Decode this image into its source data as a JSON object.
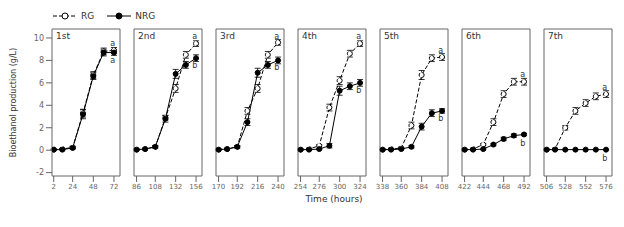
{
  "chart_data": {
    "type": "line",
    "xlabel": "Time (hours)",
    "ylabel": "Bioethanol production (g/L)",
    "legend": "upper left",
    "ylim": [
      -2.3,
      10.8
    ],
    "yticks": [
      -2,
      0,
      2,
      4,
      6,
      8,
      10
    ],
    "panels": [
      {
        "title": "1st",
        "x": [
          2,
          12,
          24,
          36,
          48,
          60,
          72
        ],
        "xlim": [
          0,
          79
        ],
        "xticks": [
          2,
          24,
          48,
          72
        ],
        "series": [
          {
            "name": "RG",
            "color": "black",
            "marker": "open_circle",
            "line_style": "dashed",
            "values": [
              0.05,
              0.1,
              0.25,
              3.3,
              6.7,
              8.8,
              8.9
            ],
            "errors": [
              0.05,
              0.05,
              0.1,
              0.35,
              0.3,
              0.3,
              0.25
            ]
          },
          {
            "name": "NRG",
            "color": "black",
            "marker": "circle",
            "line_style": "solid",
            "values": [
              0.05,
              0.05,
              0.2,
              3.2,
              6.6,
              8.7,
              8.7
            ],
            "errors": [
              0.05,
              0.05,
              0.1,
              0.4,
              0.3,
              0.3,
              0.25
            ]
          }
        ],
        "annotations": [
          {
            "text": "a",
            "x": 73.47,
            "y": 9.2
          },
          {
            "text": "a",
            "x": 73.47,
            "y": 8.4
          }
        ]
      },
      {
        "title": "2nd",
        "x": [
          86,
          96,
          108,
          120,
          132,
          144,
          156
        ],
        "xlim": [
          83,
          163
        ],
        "xticks": [
          86,
          108,
          132,
          156
        ],
        "series": [
          {
            "name": "RG",
            "color": "black",
            "marker": "open_circle",
            "line_style": "dashed",
            "values": [
              0.05,
              0.1,
              0.3,
              2.9,
              5.5,
              8.5,
              9.5
            ],
            "errors": [
              0.05,
              0.05,
              0.1,
              0.2,
              0.35,
              0.3,
              0.25
            ]
          },
          {
            "name": "NRG",
            "color": "black",
            "marker": "circle",
            "line_style": "solid",
            "values": [
              0.05,
              0.1,
              0.3,
              2.8,
              6.8,
              7.6,
              8.2
            ],
            "errors": [
              0.05,
              0.05,
              0.1,
              0.3,
              0.4,
              0.3,
              0.3
            ]
          }
        ],
        "annotations": [
          {
            "text": "a",
            "x": 157.4,
            "y": 9.8
          },
          {
            "text": "b",
            "x": 157.4,
            "y": 7.9
          }
        ]
      },
      {
        "title": "3rd",
        "x": [
          170,
          180,
          192,
          204,
          216,
          228,
          240
        ],
        "xlim": [
          167,
          247
        ],
        "xticks": [
          170,
          192,
          216,
          240
        ],
        "series": [
          {
            "name": "RG",
            "color": "black",
            "marker": "open_circle",
            "line_style": "dashed",
            "values": [
              0.05,
              0.1,
              0.3,
              3.5,
              5.5,
              8.5,
              9.6
            ],
            "errors": [
              0.05,
              0.05,
              0.1,
              0.3,
              0.35,
              0.3,
              0.25
            ]
          },
          {
            "name": "NRG",
            "color": "black",
            "marker": "circle",
            "line_style": "solid",
            "values": [
              0.05,
              0.1,
              0.3,
              2.5,
              6.9,
              7.6,
              8.0
            ],
            "errors": [
              0.05,
              0.05,
              0.1,
              0.3,
              0.4,
              0.3,
              0.3
            ]
          }
        ],
        "annotations": [
          {
            "text": "a",
            "x": 241.4,
            "y": 9.8
          },
          {
            "text": "b",
            "x": 241.4,
            "y": 7.7
          }
        ]
      },
      {
        "title": "4th",
        "x": [
          254,
          264,
          276,
          288,
          300,
          312,
          324
        ],
        "xlim": [
          251,
          331
        ],
        "xticks": [
          254,
          276,
          300,
          324
        ],
        "series": [
          {
            "name": "RG",
            "color": "black",
            "marker": "open_circle",
            "line_style": "dashed",
            "values": [
              0.05,
              0.1,
              0.4,
              3.8,
              6.2,
              8.6,
              9.5
            ],
            "errors": [
              0.05,
              0.05,
              0.1,
              0.3,
              0.35,
              0.3,
              0.25
            ]
          },
          {
            "name": "NRG",
            "color": "black",
            "marker": "circle",
            "line_style": "solid",
            "values": [
              0.05,
              0.05,
              0.1,
              0.4,
              5.3,
              5.7,
              6.0
            ],
            "errors": [
              0.05,
              0.05,
              0.05,
              0.2,
              0.4,
              0.3,
              0.3
            ]
          }
        ],
        "annotations": [
          {
            "text": "a",
            "x": 325.4,
            "y": 9.8
          },
          {
            "text": "b",
            "x": 325.4,
            "y": 5.7
          }
        ]
      },
      {
        "title": "5th",
        "x": [
          338,
          348,
          360,
          372,
          384,
          396,
          408
        ],
        "xlim": [
          335,
          415
        ],
        "xticks": [
          338,
          360,
          384,
          408
        ],
        "series": [
          {
            "name": "RG",
            "color": "black",
            "marker": "open_circle",
            "line_style": "dashed",
            "values": [
              0.05,
              0.1,
              0.2,
              2.2,
              6.7,
              8.2,
              8.3
            ],
            "errors": [
              0.05,
              0.05,
              0.05,
              0.3,
              0.4,
              0.3,
              0.3
            ]
          },
          {
            "name": "NRG",
            "color": "black",
            "marker": "circle",
            "line_style": "solid",
            "values": [
              0.05,
              0.05,
              0.1,
              0.3,
              2.1,
              3.3,
              3.5
            ],
            "errors": [
              0.05,
              0.05,
              0.05,
              0.1,
              0.3,
              0.3,
              0.2
            ]
          }
        ],
        "annotations": [
          {
            "text": "a",
            "x": 409.4,
            "y": 8.6
          },
          {
            "text": "b",
            "x": 409.4,
            "y": 3.2
          }
        ]
      },
      {
        "title": "6th",
        "x": [
          422,
          432,
          444,
          456,
          468,
          480,
          492
        ],
        "xlim": [
          419,
          499
        ],
        "xticks": [
          422,
          444,
          468,
          492
        ],
        "series": [
          {
            "name": "RG",
            "color": "black",
            "marker": "open_circle",
            "line_style": "dashed",
            "values": [
              0.05,
              0.1,
              0.5,
              2.5,
              5.0,
              6.1,
              6.1
            ],
            "errors": [
              0.05,
              0.05,
              0.1,
              0.3,
              0.3,
              0.3,
              0.3
            ]
          },
          {
            "name": "NRG",
            "color": "black",
            "marker": "circle",
            "line_style": "solid",
            "values": [
              0.05,
              0.05,
              0.1,
              0.5,
              1.0,
              1.3,
              1.4
            ],
            "errors": [
              0.05,
              0.05,
              0.05,
              0.1,
              0.15,
              0.15,
              0.1
            ]
          }
        ],
        "annotations": [
          {
            "text": "a",
            "x": 493.4,
            "y": 6.4
          },
          {
            "text": "b",
            "x": 493.4,
            "y": 1.0
          }
        ]
      },
      {
        "title": "7th",
        "x": [
          506,
          516,
          528,
          540,
          552,
          564,
          576
        ],
        "xlim": [
          503,
          583
        ],
        "xticks": [
          506,
          528,
          552,
          576
        ],
        "series": [
          {
            "name": "RG",
            "color": "black",
            "marker": "open_circle",
            "line_style": "dashed",
            "values": [
              0.05,
              0.1,
              2.0,
              3.5,
              4.2,
              4.8,
              5.0
            ],
            "errors": [
              0.05,
              0.05,
              0.2,
              0.3,
              0.3,
              0.3,
              0.3
            ]
          },
          {
            "name": "NRG",
            "color": "black",
            "marker": "circle",
            "line_style": "solid",
            "values": [
              0.05,
              0.05,
              0.05,
              0.05,
              0.05,
              0.05,
              0.05
            ],
            "errors": [
              0.02,
              0.02,
              0.02,
              0.02,
              0.02,
              0.02,
              0.02
            ]
          }
        ],
        "annotations": [
          {
            "text": "a",
            "x": 577.4,
            "y": 5.3
          },
          {
            "text": "b",
            "x": 577.4,
            "y": -0.4
          }
        ]
      }
    ]
  }
}
